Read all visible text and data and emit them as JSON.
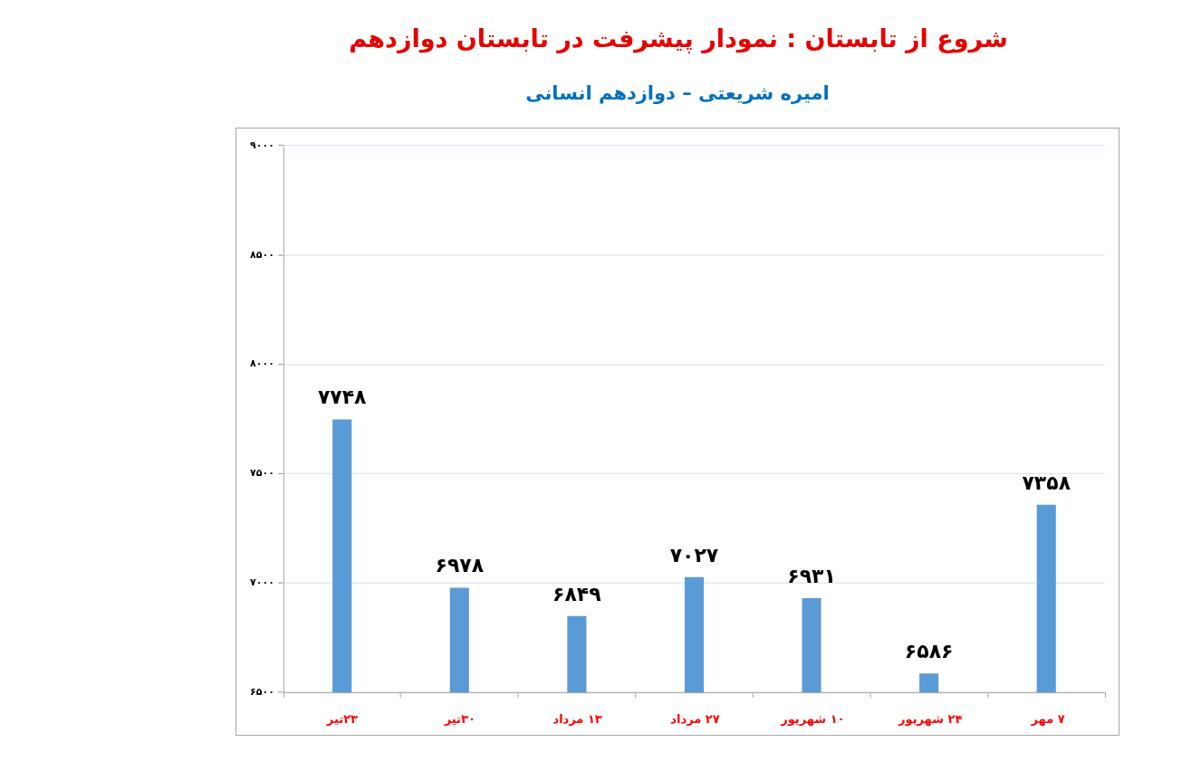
{
  "chart_data": {
    "type": "bar",
    "title": "شروع از تابستان : نمودار پیشرفت در تابستان دوازدهم",
    "subtitle": "امیره شریعتی – دوازدهم انسانی",
    "categories": [
      "۲۳تیر",
      "۳۰تیر",
      "۱۳ مرداد",
      "۲۷ مرداد",
      "۱۰ شهریور",
      "۲۴ شهریور",
      "۷ مهر"
    ],
    "values": [
      7748,
      6978,
      6849,
      7027,
      6931,
      6586,
      7358
    ],
    "value_labels": [
      "۷۷۴۸",
      "۶۹۷۸",
      "۶۸۴۹",
      "۷۰۲۷",
      "۶۹۳۱",
      "۶۵۸۶",
      "۷۳۵۸"
    ],
    "color": "#5b9bd5",
    "ylim": [
      6500,
      9000
    ],
    "yticks": [
      {
        "value": 6500,
        "label": "۶۵۰۰"
      },
      {
        "value": 7000,
        "label": "۷۰۰۰"
      },
      {
        "value": 7500,
        "label": "۷۵۰۰"
      },
      {
        "value": 8000,
        "label": "۸۰۰۰"
      },
      {
        "value": 8500,
        "label": "۸۵۰۰"
      },
      {
        "value": 9000,
        "label": "۹۰۰۰"
      }
    ],
    "grid": "y"
  }
}
